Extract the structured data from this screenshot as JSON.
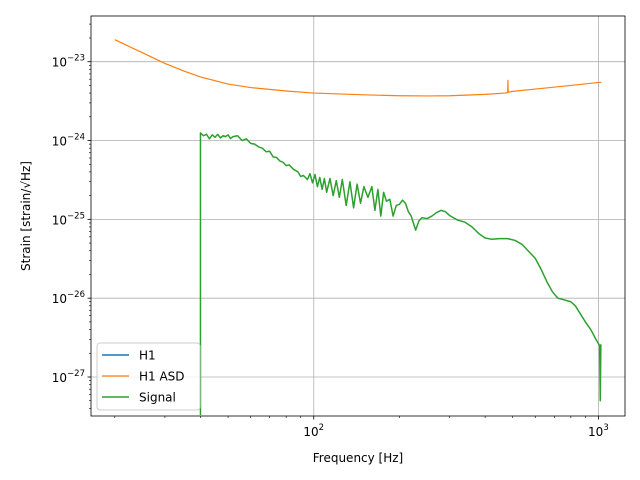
{
  "chart_data": {
    "type": "line",
    "xscale": "log",
    "yscale": "log",
    "xlabel": "Frequency [Hz]",
    "ylabel": "Strain [strain/√Hz]",
    "xlim": [
      16.5,
      1240
    ],
    "ylim": [
      3.2e-28,
      3.8e-23
    ],
    "grid": true,
    "legend_position": "lower-left",
    "x_ticks": [
      {
        "value": 100,
        "base": "10",
        "exp": "2"
      },
      {
        "value": 1000,
        "base": "10",
        "exp": "3"
      }
    ],
    "y_ticks": [
      {
        "value": 1e-27,
        "base": "10",
        "exp": "−27"
      },
      {
        "value": 1e-26,
        "base": "10",
        "exp": "−26"
      },
      {
        "value": 1e-25,
        "base": "10",
        "exp": "−25"
      },
      {
        "value": 1e-24,
        "base": "10",
        "exp": "−24"
      },
      {
        "value": 1e-23,
        "base": "10",
        "exp": "−23"
      }
    ],
    "series": [
      {
        "name": "H1",
        "color": "#1f77b4",
        "width": 1.5,
        "points": []
      },
      {
        "name": "H1 ASD",
        "color": "#ff7f0e",
        "width": 1.2,
        "points": [
          [
            20,
            1.9e-23
          ],
          [
            25,
            1.3e-23
          ],
          [
            30,
            9.5e-24
          ],
          [
            35,
            7.6e-24
          ],
          [
            40,
            6.4e-24
          ],
          [
            50,
            5.2e-24
          ],
          [
            60,
            4.7e-24
          ],
          [
            80,
            4.25e-24
          ],
          [
            100,
            4e-24
          ],
          [
            150,
            3.8e-24
          ],
          [
            200,
            3.7e-24
          ],
          [
            250,
            3.68e-24
          ],
          [
            300,
            3.7e-24
          ],
          [
            400,
            3.85e-24
          ],
          [
            470,
            4e-24
          ],
          [
            480,
            4.05e-24
          ],
          [
            481,
            5.8e-24
          ],
          [
            482,
            4.1e-24
          ],
          [
            500,
            4.2e-24
          ],
          [
            600,
            4.5e-24
          ],
          [
            800,
            5e-24
          ],
          [
            1024,
            5.5e-24
          ]
        ]
      },
      {
        "name": "Signal",
        "color": "#2ca02c",
        "width": 1.5,
        "points": [
          [
            40,
            3.3e-28
          ],
          [
            40,
            1.25e-24
          ],
          [
            41,
            1.15e-24
          ],
          [
            42,
            1.2e-24
          ],
          [
            43,
            1.05e-24
          ],
          [
            44,
            1.18e-24
          ],
          [
            45,
            1.1e-24
          ],
          [
            46,
            1.2e-24
          ],
          [
            47,
            1.08e-24
          ],
          [
            48,
            1.15e-24
          ],
          [
            49,
            1.12e-24
          ],
          [
            50,
            1.18e-24
          ],
          [
            51,
            1.06e-24
          ],
          [
            52,
            1.12e-24
          ],
          [
            54,
            1.15e-24
          ],
          [
            56,
            1e-24
          ],
          [
            58,
            1.05e-24
          ],
          [
            60,
            9.2e-25
          ],
          [
            62,
            9e-25
          ],
          [
            64,
            8.3e-25
          ],
          [
            66,
            8e-25
          ],
          [
            68,
            7.2e-25
          ],
          [
            70,
            7.3e-25
          ],
          [
            72,
            6.2e-25
          ],
          [
            74,
            6.1e-25
          ],
          [
            76,
            5.5e-25
          ],
          [
            78,
            5.3e-25
          ],
          [
            80,
            4.8e-25
          ],
          [
            82,
            4.9e-25
          ],
          [
            85,
            4.3e-25
          ],
          [
            88,
            4e-25
          ],
          [
            90,
            3.5e-25
          ],
          [
            92,
            3.6e-25
          ],
          [
            95,
            3.2e-25
          ],
          [
            97,
            3.8e-25
          ],
          [
            99,
            2.9e-25
          ],
          [
            101,
            3.7e-25
          ],
          [
            103,
            2.6e-25
          ],
          [
            105,
            3.4e-25
          ],
          [
            107,
            2.4e-25
          ],
          [
            109,
            3.3e-25
          ],
          [
            111,
            2.2e-25
          ],
          [
            114,
            3.3e-25
          ],
          [
            117,
            2e-25
          ],
          [
            120,
            3.1e-25
          ],
          [
            123,
            1.9e-25
          ],
          [
            126,
            3.2e-25
          ],
          [
            130,
            1.5e-25
          ],
          [
            134,
            3e-25
          ],
          [
            138,
            1.4e-25
          ],
          [
            142,
            2.8e-25
          ],
          [
            146,
            1.6e-25
          ],
          [
            150,
            2.6e-25
          ],
          [
            155,
            1.9e-25
          ],
          [
            160,
            2.6e-25
          ],
          [
            164,
            1.3e-25
          ],
          [
            168,
            2.4e-25
          ],
          [
            172,
            1.1e-25
          ],
          [
            176,
            2.2e-25
          ],
          [
            180,
            1.7e-25
          ],
          [
            185,
            1.8e-25
          ],
          [
            190,
            1.1e-25
          ],
          [
            195,
            1.5e-25
          ],
          [
            200,
            1.55e-25
          ],
          [
            205,
            1.75e-25
          ],
          [
            210,
            1.6e-25
          ],
          [
            215,
            1.25e-25
          ],
          [
            220,
            1.1e-25
          ],
          [
            228,
            7.3e-26
          ],
          [
            234,
            9.5e-26
          ],
          [
            240,
            1.05e-25
          ],
          [
            250,
            1.02e-25
          ],
          [
            260,
            1.1e-25
          ],
          [
            270,
            1.22e-25
          ],
          [
            280,
            1.3e-25
          ],
          [
            290,
            1.25e-25
          ],
          [
            300,
            1.12e-25
          ],
          [
            320,
            9.8e-26
          ],
          [
            340,
            9.2e-26
          ],
          [
            360,
            8e-26
          ],
          [
            380,
            6.6e-26
          ],
          [
            400,
            5.8e-26
          ],
          [
            420,
            5.6e-26
          ],
          [
            450,
            5.7e-26
          ],
          [
            480,
            5.7e-26
          ],
          [
            510,
            5.4e-26
          ],
          [
            540,
            4.8e-26
          ],
          [
            570,
            3.9e-26
          ],
          [
            600,
            3.2e-26
          ],
          [
            630,
            2.3e-26
          ],
          [
            660,
            1.6e-26
          ],
          [
            690,
            1.2e-26
          ],
          [
            720,
            1e-26
          ],
          [
            760,
            9.5e-27
          ],
          [
            800,
            9e-27
          ],
          [
            830,
            8e-27
          ],
          [
            860,
            6.5e-27
          ],
          [
            900,
            5e-27
          ],
          [
            940,
            4e-27
          ],
          [
            980,
            3e-27
          ],
          [
            1010,
            2.5e-27
          ],
          [
            1015,
            5e-28
          ],
          [
            1020,
            2.6e-27
          ]
        ]
      }
    ]
  }
}
